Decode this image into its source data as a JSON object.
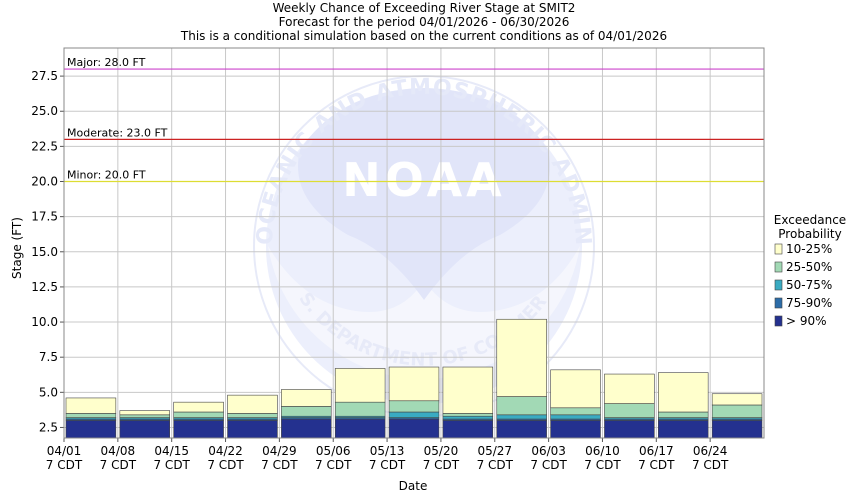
{
  "chart_data": {
    "type": "bar",
    "stacked": true,
    "title": "Weekly Chance of Exceeding River Stage at SMIT2",
    "subtitle1": "Forecast for the period 04/01/2026 - 06/30/2026",
    "subtitle2": "This is a conditional simulation based on the current conditions as of 04/01/2026",
    "xlabel": "Date",
    "ylabel": "Stage (FT)",
    "ylim": [
      1.75,
      29.5
    ],
    "yticks": [
      "2.5",
      "5.0",
      "7.5",
      "10.0",
      "12.5",
      "15.0",
      "17.5",
      "20.0",
      "22.5",
      "25.0",
      "27.5"
    ],
    "grid": true,
    "categories": [
      "04/01",
      "04/08",
      "04/15",
      "04/22",
      "04/29",
      "05/06",
      "05/13",
      "05/20",
      "05/27",
      "06/03",
      "06/10",
      "06/17",
      "06/24"
    ],
    "category_sublabel": "7 CDT",
    "levels_upper": {
      "p90": [
        3.0,
        3.0,
        3.0,
        3.0,
        3.1,
        3.1,
        3.1,
        3.0,
        3.0,
        3.0,
        3.0,
        3.0,
        3.0
      ],
      "p75_90": [
        3.1,
        3.1,
        3.1,
        3.1,
        3.2,
        3.2,
        3.2,
        3.1,
        3.1,
        3.1,
        3.1,
        3.1,
        3.1
      ],
      "p50_75": [
        3.2,
        3.2,
        3.2,
        3.2,
        3.3,
        3.3,
        3.6,
        3.3,
        3.4,
        3.4,
        3.2,
        3.2,
        3.2
      ],
      "p25_50": [
        3.5,
        3.4,
        3.6,
        3.5,
        4.0,
        4.3,
        4.4,
        3.5,
        4.7,
        3.9,
        4.2,
        3.6,
        4.1
      ],
      "p10_25": [
        4.6,
        3.7,
        4.3,
        4.8,
        5.2,
        6.7,
        6.8,
        6.8,
        10.2,
        6.6,
        6.3,
        6.4,
        4.9
      ]
    },
    "series": [
      {
        "name": "> 90%",
        "key": "p90",
        "color": "#24318f"
      },
      {
        "name": "75-90%",
        "key": "p75_90",
        "color": "#2c6ca8"
      },
      {
        "name": "50-75%",
        "key": "p50_75",
        "color": "#3aabc2"
      },
      {
        "name": "25-50%",
        "key": "p25_50",
        "color": "#a2d9b5"
      },
      {
        "name": "10-25%",
        "key": "p10_25",
        "color": "#ffffcc"
      }
    ],
    "thresholds": [
      {
        "label": "Major: 28.0 FT",
        "value": 28.0,
        "color": "#cc44cc"
      },
      {
        "label": "Moderate: 23.0 FT",
        "value": 23.0,
        "color": "#cc2222"
      },
      {
        "label": "Minor: 20.0 FT",
        "value": 20.0,
        "color": "#dddd33"
      }
    ],
    "legend": {
      "title_line1": "Exceedance",
      "title_line2": "Probability",
      "items": [
        "10-25%",
        "25-50%",
        "50-75%",
        "75-90%",
        "> 90%"
      ],
      "colors": [
        "#ffffcc",
        "#a2d9b5",
        "#3aabc2",
        "#2c6ca8",
        "#24318f"
      ],
      "placement": "right"
    },
    "watermark": {
      "text_outer": "NATIONAL OCEANIC AND ATMOSPHERIC ADMINISTRATION",
      "text_center": "NOAA",
      "text_bottom": "U.S. DEPARTMENT OF COMMERCE"
    }
  }
}
